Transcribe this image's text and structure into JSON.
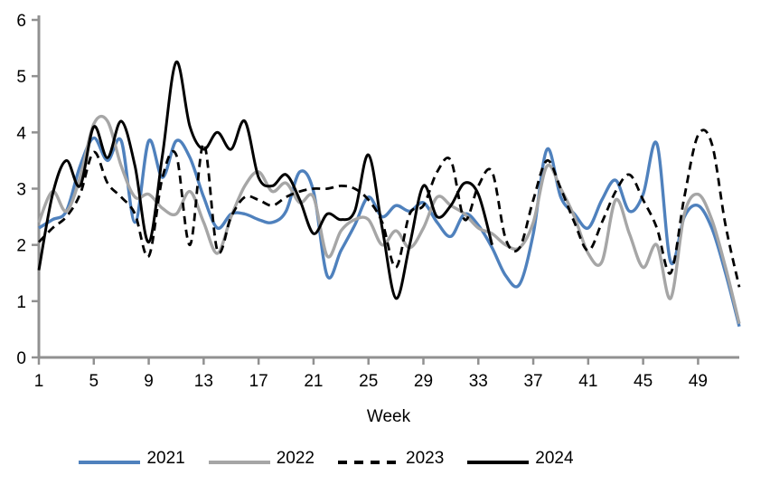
{
  "chart_data": {
    "type": "line",
    "title": "",
    "xlabel": "Week",
    "ylabel": "",
    "x_range": [
      1,
      52
    ],
    "xticks": [
      1,
      5,
      9,
      13,
      17,
      21,
      25,
      29,
      33,
      37,
      41,
      45,
      49
    ],
    "ylim": [
      0,
      6
    ],
    "yticks": [
      0,
      1,
      2,
      3,
      4,
      5,
      6
    ],
    "grid": false,
    "legend_position": "bottom",
    "axis_color": "#919191",
    "background_color": "#ffffff",
    "series": [
      {
        "name": "2021",
        "color": "#4F81BD",
        "style": "solid",
        "start_week": 1,
        "values": [
          2.3,
          2.45,
          2.6,
          3.4,
          3.9,
          3.5,
          3.85,
          2.4,
          3.85,
          3.2,
          3.85,
          3.55,
          2.85,
          2.3,
          2.55,
          2.55,
          2.45,
          2.4,
          2.6,
          3.3,
          2.95,
          1.45,
          1.9,
          2.35,
          2.85,
          2.5,
          2.7,
          2.6,
          2.75,
          2.4,
          2.15,
          2.55,
          2.35,
          1.95,
          1.45,
          1.3,
          2.2,
          3.7,
          2.85,
          2.55,
          2.3,
          2.8,
          3.15,
          2.6,
          2.9,
          3.8,
          1.7,
          2.5,
          2.7,
          2.3,
          1.5,
          0.55
        ]
      },
      {
        "name": "2022",
        "color": "#A6A6A6",
        "style": "solid",
        "start_week": 1,
        "values": [
          2.4,
          2.95,
          2.6,
          3.2,
          4.15,
          4.2,
          3.4,
          2.85,
          2.9,
          2.65,
          2.55,
          2.95,
          2.4,
          1.85,
          2.5,
          3.05,
          3.3,
          2.95,
          3.1,
          2.75,
          2.85,
          1.8,
          2.25,
          2.45,
          2.45,
          2.0,
          2.25,
          1.95,
          2.3,
          2.85,
          2.7,
          2.55,
          2.3,
          2.2,
          2.0,
          1.95,
          2.4,
          3.4,
          3.0,
          2.5,
          1.85,
          1.7,
          2.8,
          2.2,
          1.6,
          2.0,
          1.05,
          2.55,
          2.9,
          2.45,
          1.6,
          0.6
        ]
      },
      {
        "name": "2023",
        "color": "#000000",
        "style": "dashed",
        "start_week": 1,
        "values": [
          2.05,
          2.3,
          2.5,
          2.9,
          3.65,
          3.1,
          2.85,
          2.55,
          1.8,
          3.2,
          3.6,
          2.0,
          3.8,
          1.9,
          2.5,
          2.85,
          2.8,
          2.7,
          2.85,
          2.95,
          3.0,
          3.0,
          3.05,
          3.0,
          2.8,
          2.4,
          1.6,
          2.55,
          2.7,
          3.3,
          3.5,
          2.45,
          3.05,
          3.3,
          2.1,
          1.95,
          2.8,
          3.5,
          3.0,
          2.4,
          1.9,
          2.4,
          2.95,
          3.25,
          2.8,
          2.3,
          1.5,
          2.85,
          3.95,
          3.8,
          2.35,
          1.25
        ]
      },
      {
        "name": "2024",
        "color": "#000000",
        "style": "solid",
        "start_week": 1,
        "values": [
          1.55,
          2.9,
          3.5,
          3.05,
          4.1,
          3.55,
          4.2,
          3.4,
          2.05,
          3.6,
          5.25,
          4.1,
          3.7,
          4.0,
          3.7,
          4.2,
          3.2,
          3.05,
          3.25,
          2.8,
          2.2,
          2.55,
          2.45,
          2.6,
          3.6,
          2.3,
          1.05,
          2.0,
          3.05,
          2.5,
          2.7,
          3.1,
          2.9,
          2.0
        ]
      }
    ]
  }
}
